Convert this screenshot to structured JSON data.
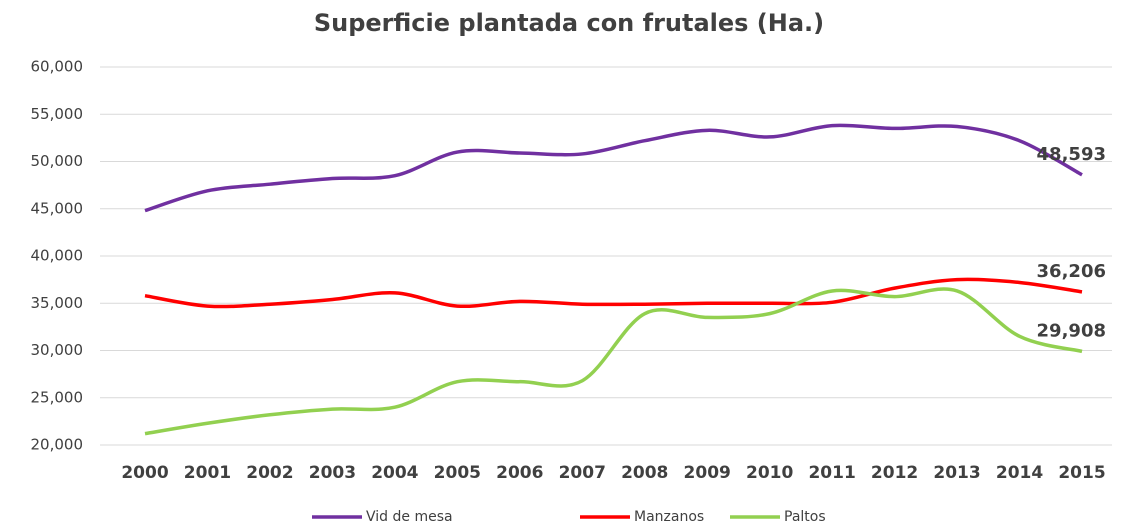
{
  "chart_data": {
    "type": "line",
    "title": "Superficie plantada con frutales (Ha.)",
    "categories": [
      "2000",
      "2001",
      "2002",
      "2003",
      "2004",
      "2005",
      "2006",
      "2007",
      "2008",
      "2009",
      "2010",
      "2011",
      "2012",
      "2013",
      "2014",
      "2015"
    ],
    "series": [
      {
        "name": "Vid de mesa",
        "color": "#7030a0",
        "values": [
          44800,
          46900,
          47600,
          48200,
          48500,
          51000,
          50900,
          50800,
          52200,
          53300,
          52600,
          53800,
          53500,
          53700,
          52200,
          48593
        ],
        "value_labels": [
          null,
          null,
          null,
          null,
          null,
          null,
          null,
          null,
          null,
          null,
          null,
          null,
          null,
          null,
          null,
          "48,593"
        ]
      },
      {
        "name": "Manzanos",
        "color": "#ff0000",
        "values": [
          35800,
          34700,
          34900,
          35400,
          36100,
          34700,
          35200,
          34900,
          34900,
          35000,
          35000,
          35100,
          36600,
          37500,
          37200,
          36206
        ],
        "value_labels": [
          null,
          null,
          null,
          null,
          null,
          null,
          null,
          null,
          null,
          null,
          null,
          null,
          null,
          null,
          null,
          "36,206"
        ]
      },
      {
        "name": "Paltos",
        "color": "#92d050",
        "values": [
          21200,
          22300,
          23200,
          23800,
          24000,
          26700,
          26700,
          26800,
          33900,
          33500,
          33900,
          36300,
          35700,
          36300,
          31500,
          29908
        ],
        "value_labels": [
          null,
          null,
          null,
          null,
          null,
          null,
          null,
          null,
          null,
          null,
          null,
          null,
          null,
          null,
          null,
          "29,908"
        ]
      }
    ],
    "ylim": [
      20000,
      60000
    ],
    "yticks": [
      {
        "value": 20000,
        "label": "20,000"
      },
      {
        "value": 25000,
        "label": "25,000"
      },
      {
        "value": 30000,
        "label": "30,000"
      },
      {
        "value": 35000,
        "label": "35,000"
      },
      {
        "value": 40000,
        "label": "40,000"
      },
      {
        "value": 45000,
        "label": "45,000"
      },
      {
        "value": 50000,
        "label": "50,000"
      },
      {
        "value": 55000,
        "label": "55,000"
      },
      {
        "value": 60000,
        "label": "60,000"
      }
    ],
    "grid": true,
    "legend": "bottom"
  }
}
